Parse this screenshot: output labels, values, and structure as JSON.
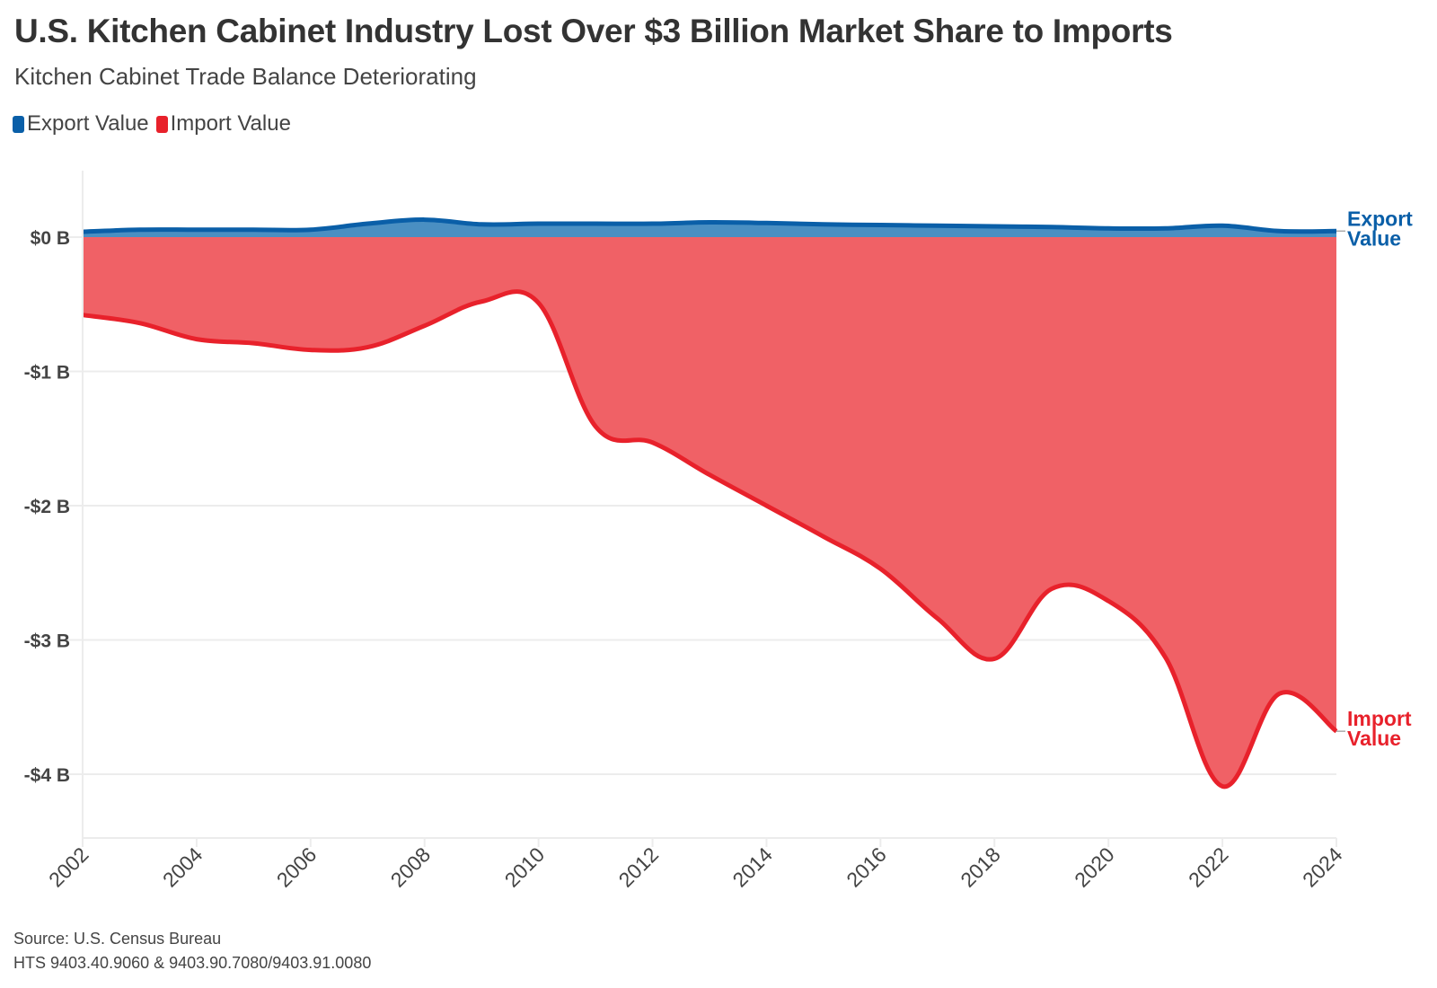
{
  "header": {
    "title": "U.S. Kitchen Cabinet Industry Lost Over $3 Billion Market Share to Imports",
    "subtitle": "Kitchen Cabinet Trade Balance Deteriorating"
  },
  "footer": {
    "source": "Source: U.S. Census Bureau",
    "hts": "HTS 9403.40.9060 & 9403.90.7080/9403.91.0080"
  },
  "colors": {
    "export_line": "#0a5fa8",
    "export_fill": "#4a8fc2",
    "import_line": "#e8212b",
    "import_fill": "#f06166",
    "grid": "#ececec"
  },
  "chart_data": {
    "type": "area",
    "title": "U.S. Kitchen Cabinet Industry Lost Over $3 Billion Market Share to Imports",
    "subtitle": "Kitchen Cabinet Trade Balance Deteriorating",
    "xlabel": "",
    "ylabel": "",
    "x": [
      2002,
      2003,
      2004,
      2005,
      2006,
      2007,
      2008,
      2009,
      2010,
      2011,
      2012,
      2013,
      2014,
      2015,
      2016,
      2017,
      2018,
      2019,
      2020,
      2021,
      2022,
      2023,
      2024
    ],
    "series": [
      {
        "name": "Export Value",
        "end_label": [
          "Export",
          "Value"
        ],
        "values": [
          0.04,
          0.055,
          0.055,
          0.055,
          0.055,
          0.1,
          0.13,
          0.095,
          0.1,
          0.1,
          0.1,
          0.11,
          0.105,
          0.095,
          0.09,
          0.085,
          0.08,
          0.075,
          0.065,
          0.065,
          0.085,
          0.045,
          0.045
        ]
      },
      {
        "name": "Import Value",
        "end_label": [
          "Import",
          "Value"
        ],
        "values": [
          -0.58,
          -0.64,
          -0.76,
          -0.79,
          -0.84,
          -0.82,
          -0.66,
          -0.48,
          -0.49,
          -1.41,
          -1.53,
          -1.77,
          -2.0,
          -2.23,
          -2.47,
          -2.84,
          -3.14,
          -2.62,
          -2.71,
          -3.13,
          -4.09,
          -3.4,
          -3.68
        ]
      }
    ],
    "yticks": [
      0,
      -1,
      -2,
      -3,
      -4
    ],
    "ytick_labels": [
      "$0 B",
      "-$1 B",
      "-$2 B",
      "-$3 B",
      "-$4 B"
    ],
    "xticks": [
      2002,
      2004,
      2006,
      2008,
      2010,
      2012,
      2014,
      2016,
      2018,
      2020,
      2022,
      2024
    ],
    "xtick_labels": [
      "2002",
      "2004",
      "2006",
      "2008",
      "2010",
      "2012",
      "2014",
      "2016",
      "2018",
      "2020",
      "2022",
      "2024"
    ],
    "ylim": [
      -4.5,
      0.5
    ],
    "xlim": [
      2002,
      2024
    ],
    "grid": true,
    "legend": "top-left"
  }
}
